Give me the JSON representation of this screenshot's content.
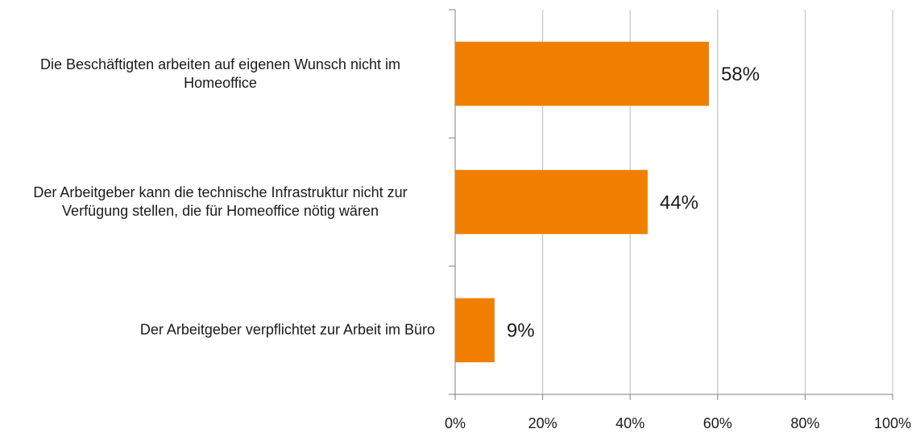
{
  "chart_data": {
    "type": "bar",
    "orientation": "horizontal",
    "categories": [
      "Die Beschäftigten arbeiten auf eigenen Wunsch nicht im Homeoffice",
      "Der Arbeitgeber kann die technische Infrastruktur nicht zur Verfügung stellen, die für Homeoffice nötig wären",
      "Der Arbeitgeber verpflichtet zur Arbeit im Büro"
    ],
    "values": [
      58,
      44,
      9
    ],
    "value_labels": [
      "58%",
      "44%",
      "9%"
    ],
    "color": "#f07f00",
    "xlim": [
      0,
      100
    ],
    "xticks": [
      {
        "value": 0,
        "label": "0%"
      },
      {
        "value": 20,
        "label": "20%"
      },
      {
        "value": 40,
        "label": "40%"
      },
      {
        "value": 60,
        "label": "60%"
      },
      {
        "value": 80,
        "label": "80%"
      },
      {
        "value": 100,
        "label": "100%"
      }
    ],
    "grid": true
  }
}
